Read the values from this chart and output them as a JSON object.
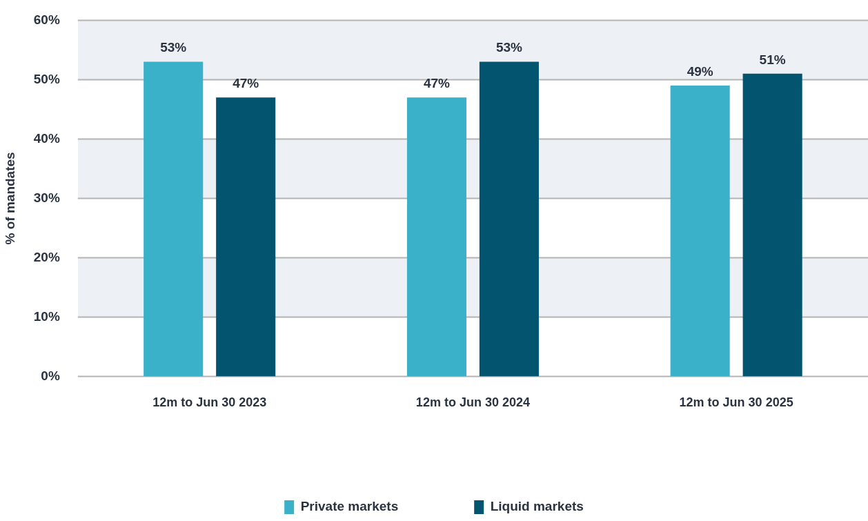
{
  "chart_data": {
    "type": "bar",
    "ylabel": "% of mandates",
    "categories": [
      "12m to Jun 30 2023",
      "12m to Jun 30 2024",
      "12m to Jun 30 2025"
    ],
    "series": [
      {
        "name": "Private markets",
        "color": "#3bb0c9",
        "values": [
          53,
          47,
          49
        ],
        "value_labels": [
          "53%",
          "47%",
          "49%"
        ]
      },
      {
        "name": "Liquid markets",
        "color": "#02546f",
        "values": [
          47,
          53,
          51
        ],
        "value_labels": [
          "47%",
          "53%",
          "51%"
        ]
      }
    ],
    "ylim": [
      0,
      60
    ],
    "yticks": [
      {
        "value": 0,
        "label": "0%"
      },
      {
        "value": 10,
        "label": "10%"
      },
      {
        "value": 20,
        "label": "20%"
      },
      {
        "value": 30,
        "label": "30%"
      },
      {
        "value": 40,
        "label": "40%"
      },
      {
        "value": 50,
        "label": "50%"
      },
      {
        "value": 60,
        "label": "60%"
      }
    ],
    "bands": [
      {
        "axis": "y",
        "from": 10,
        "to": 20,
        "color": "#edf0f4"
      },
      {
        "axis": "y",
        "from": 30,
        "to": 40,
        "color": "#edf0f4"
      },
      {
        "axis": "y",
        "from": 50,
        "to": 60,
        "color": "#edf0f4"
      }
    ],
    "grid": "y",
    "legend": "bottom"
  }
}
